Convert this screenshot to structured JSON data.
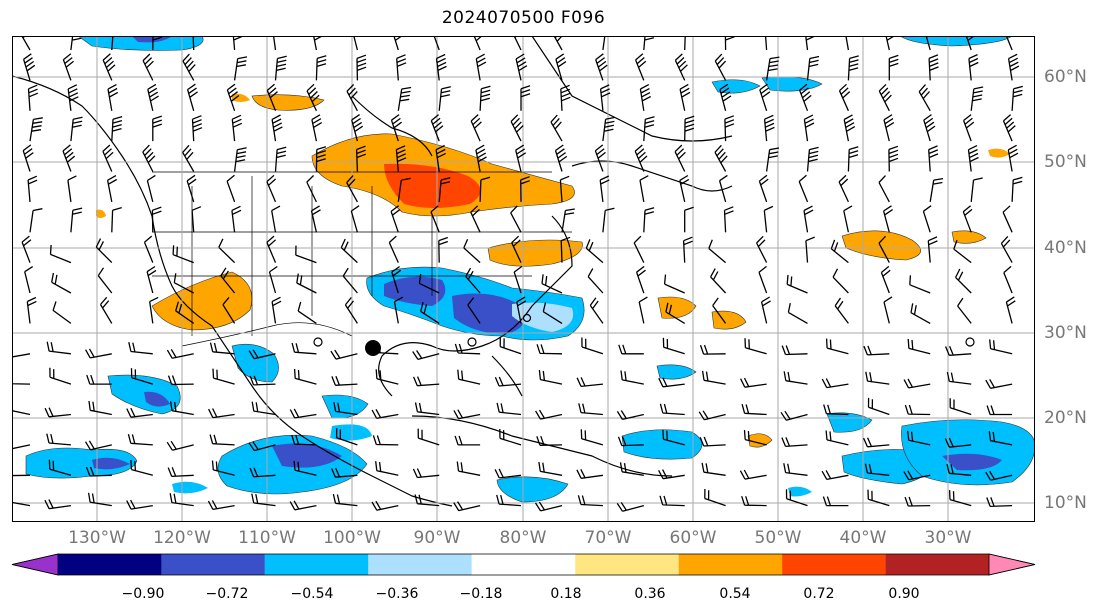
{
  "title": "2024070500 F096",
  "lat_labels": [
    "60°N",
    "50°N",
    "40°N",
    "30°N",
    "20°N",
    "10°N"
  ],
  "lon_labels": [
    "130°W",
    "120°W",
    "110°W",
    "100°W",
    "90°W",
    "80°W",
    "70°W",
    "60°W",
    "50°W",
    "40°W",
    "30°W"
  ],
  "colorbar": {
    "colors": [
      "#9932CC",
      "#000080",
      "#3A50C8",
      "#00BFFF",
      "#ADDFFF",
      "#FFFFFF",
      "#FFE680",
      "#FFA500",
      "#FF4500",
      "#B22222",
      "#FF88B4"
    ],
    "ticks": [
      "−0.90",
      "−0.72",
      "−0.54",
      "−0.36",
      "−0.18",
      "0.18",
      "0.36",
      "0.54",
      "0.72",
      "0.90"
    ],
    "extend": "both"
  },
  "map": {
    "projection": "PlateCarree",
    "lon_range": [
      -140,
      -25
    ],
    "lat_range": [
      8,
      65
    ],
    "gridlines": true,
    "wind_barbs": true
  }
}
